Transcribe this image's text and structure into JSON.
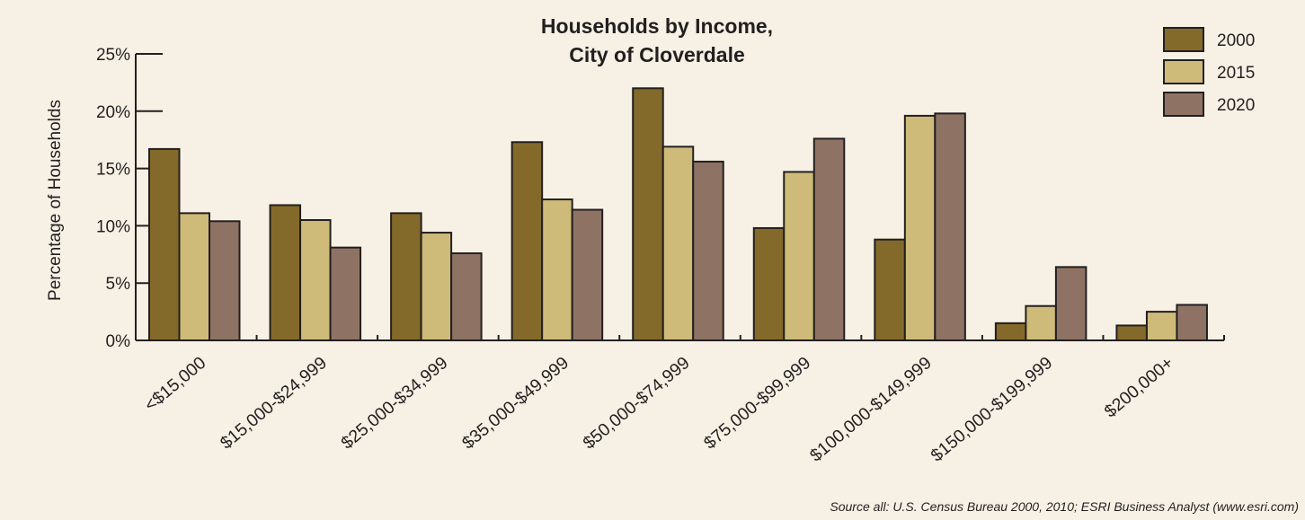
{
  "chart_data": {
    "type": "bar",
    "title": "Households by Income,",
    "subtitle": "City of Cloverdale",
    "xlabel": "",
    "ylabel": "Percentage of Households",
    "ylim": [
      0,
      25
    ],
    "yticks": [
      "0%",
      "5%",
      "10%",
      "15%",
      "20%",
      "25%"
    ],
    "categories": [
      "<$15,000",
      "$15,000-$24,999",
      "$25,000-$34,999",
      "$35,000-$49,999",
      "$50,000-$74,999",
      "$75,000-$99,999",
      "$100,000-$149,999",
      "$150,000-$199,999",
      "$200,000+"
    ],
    "series": [
      {
        "name": "2000",
        "color": "#846a2a",
        "values": [
          16.7,
          11.8,
          11.1,
          17.3,
          22.0,
          9.8,
          8.8,
          1.5,
          1.3
        ]
      },
      {
        "name": "2015",
        "color": "#cfbb79",
        "values": [
          11.1,
          10.5,
          9.4,
          12.3,
          16.9,
          14.7,
          19.6,
          3.0,
          2.5
        ]
      },
      {
        "name": "2020",
        "color": "#8e7364",
        "values": [
          10.4,
          8.1,
          7.6,
          11.4,
          15.6,
          17.6,
          19.8,
          6.4,
          3.1
        ]
      }
    ],
    "legend_position": "top-right",
    "grid": false,
    "source": "Source all: U.S. Census Bureau 2000, 2010; ESRI Business Analyst (www.esri.com)"
  }
}
